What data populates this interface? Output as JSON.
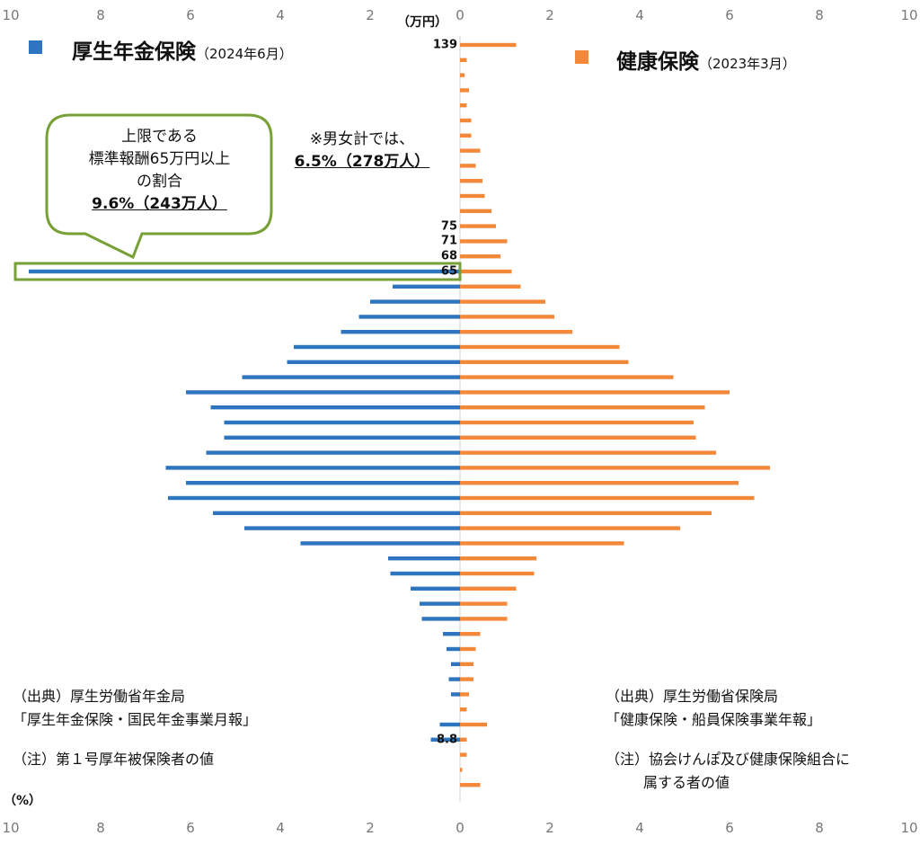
{
  "legend": {
    "left": {
      "title": "厚生年金保険",
      "date": "（2024年6月）",
      "color": "#2E75C0"
    },
    "right": {
      "title": "健康保険",
      "date": "（2023年3月）",
      "color": "#F2883A"
    }
  },
  "unit_label": "（万円）",
  "percent_label": "（%）",
  "callout": {
    "line1": "上限である",
    "line2": "標準報酬65万円以上",
    "line3": "の割合",
    "value": "9.6%（243万人）"
  },
  "note": {
    "line1": "※男女計では、",
    "value": "6.5%（278万人）"
  },
  "left_source": {
    "line1": "（出典）厚生労働省年金局",
    "line2": "「厚生年金保険・国民年金事業月報」",
    "line3": "（注）第１号厚年被保険者の値"
  },
  "right_source": {
    "line1": "（出典）厚生労働省保険局",
    "line2": "「健康保険・船員保険事業年報」",
    "line3": "（注）協会けんぽ及び健康保険組合に",
    "line4": "属する者の値"
  },
  "chart_data": {
    "type": "bar",
    "orientation": "horizontal",
    "xlim": [
      0,
      10
    ],
    "xticks": [
      "10",
      "8",
      "6",
      "4",
      "2",
      "0",
      "2",
      "4",
      "6",
      "8",
      "10"
    ],
    "level_labels": [
      {
        "index": 0,
        "text": "139"
      },
      {
        "index": 12,
        "text": "75"
      },
      {
        "index": 13,
        "text": "71"
      },
      {
        "index": 14,
        "text": "68"
      },
      {
        "index": 15,
        "text": "65"
      },
      {
        "index": 46,
        "text": "8.8"
      }
    ],
    "series": [
      {
        "name": "厚生年金保険",
        "side": "left",
        "color": "#2E75C0",
        "values": [
          0,
          0,
          0,
          0,
          0,
          0,
          0,
          0,
          0,
          0,
          0,
          0,
          0,
          0,
          0,
          9.6,
          1.5,
          2.0,
          2.25,
          2.65,
          3.7,
          3.85,
          4.85,
          6.1,
          5.55,
          5.25,
          5.25,
          5.65,
          6.55,
          6.1,
          6.5,
          5.5,
          4.8,
          3.55,
          1.6,
          1.55,
          1.1,
          0.9,
          0.85,
          0.38,
          0.3,
          0.2,
          0.25,
          0.2,
          0,
          0.45,
          0.65,
          0,
          0,
          0
        ]
      },
      {
        "name": "健康保険",
        "side": "right",
        "color": "#F2883A",
        "values": [
          1.25,
          0.15,
          0.1,
          0.2,
          0.15,
          0.25,
          0.25,
          0.45,
          0.35,
          0.5,
          0.55,
          0.7,
          0.8,
          1.05,
          0.9,
          1.15,
          1.35,
          1.9,
          2.1,
          2.5,
          3.55,
          3.75,
          4.75,
          6.0,
          5.45,
          5.2,
          5.25,
          5.7,
          6.9,
          6.2,
          6.55,
          5.6,
          4.9,
          3.65,
          1.7,
          1.65,
          1.25,
          1.05,
          1.05,
          0.45,
          0.35,
          0.3,
          0.3,
          0.2,
          0.15,
          0.6,
          0.15,
          0.15,
          0.05,
          0.45
        ]
      }
    ]
  }
}
